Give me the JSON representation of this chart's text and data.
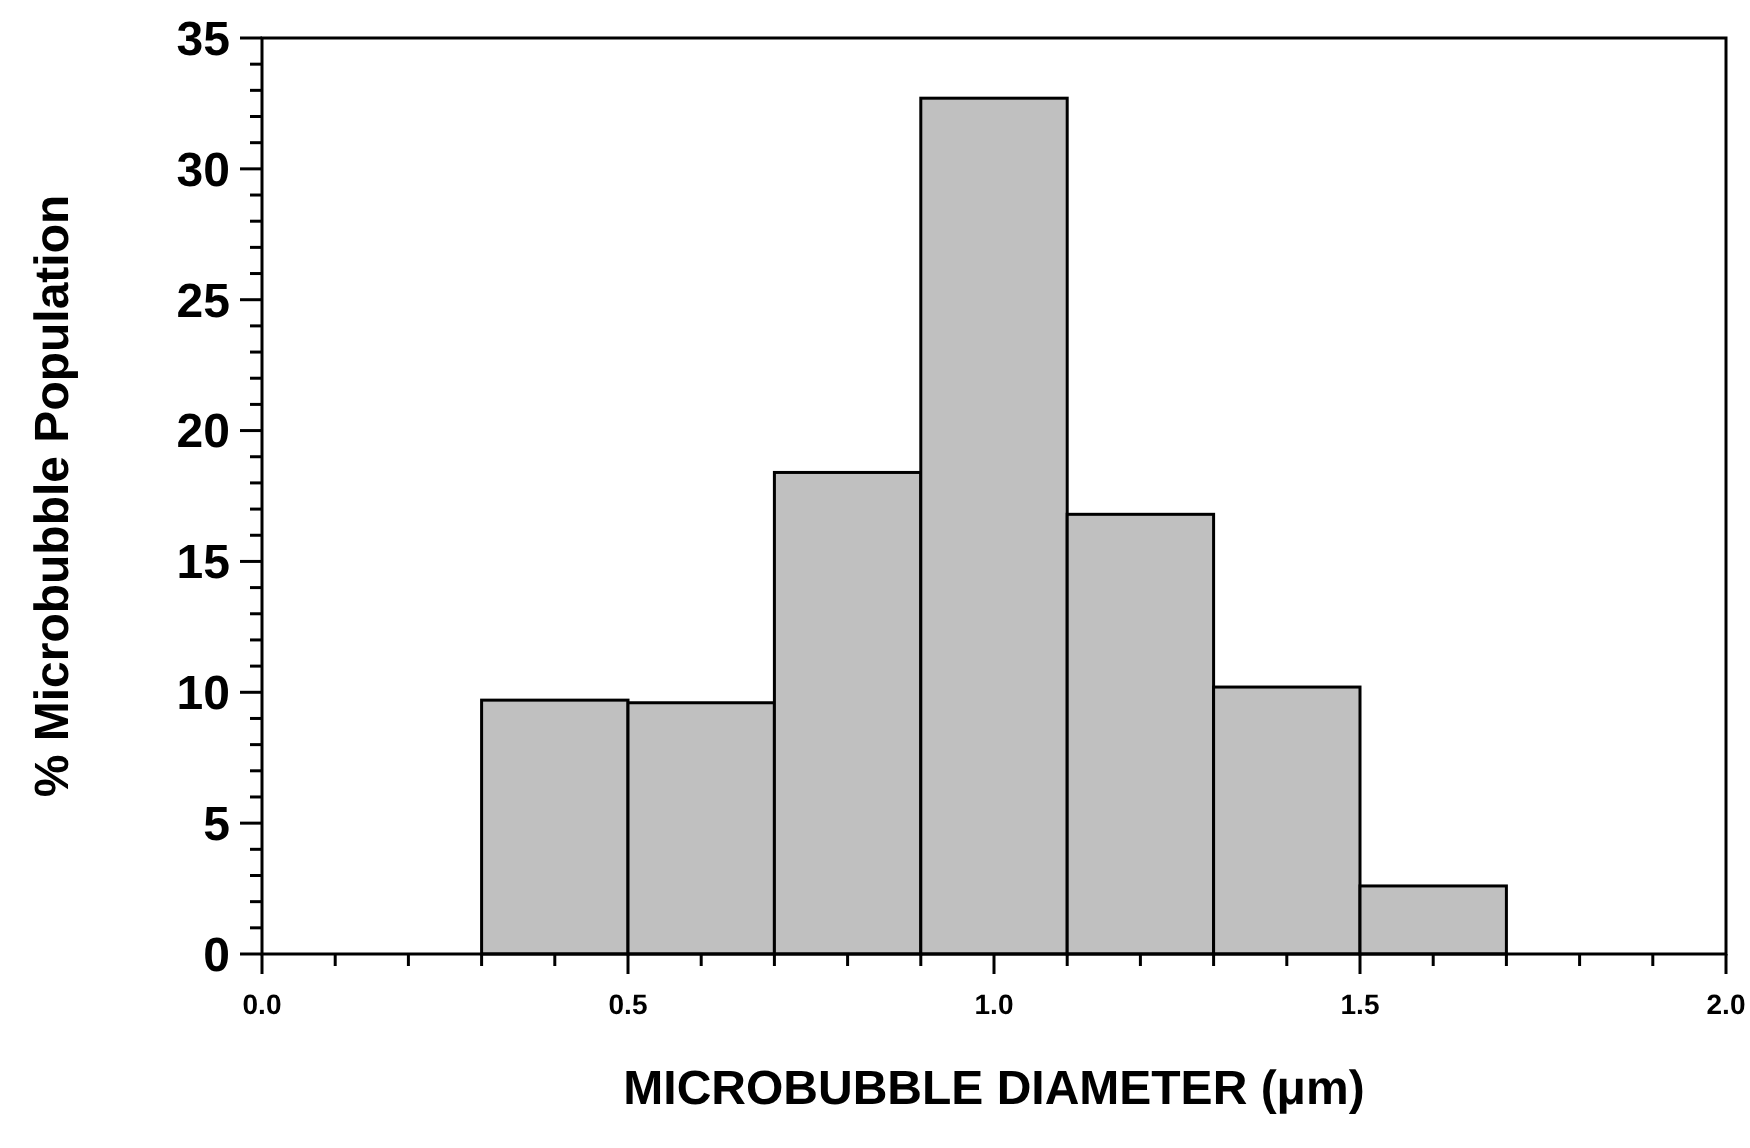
{
  "chart_data": {
    "type": "histogram",
    "xlabel": "MICROBUBBLE DIAMETER (μm)",
    "ylabel": "% Microbubble Population",
    "bins": [
      0.3,
      0.5,
      0.7,
      0.9,
      1.1,
      1.3,
      1.5,
      1.7
    ],
    "values": [
      9.7,
      9.6,
      18.4,
      32.7,
      16.8,
      10.2,
      2.6
    ],
    "color": "#c0c0c0",
    "xlim": [
      0,
      2
    ],
    "xticks": [
      {
        "value": 0,
        "label": "0.0"
      },
      {
        "value": 0.1,
        "label": null
      },
      {
        "value": 0.2,
        "label": null
      },
      {
        "value": 0.3,
        "label": null
      },
      {
        "value": 0.4,
        "label": null
      },
      {
        "value": 0.5,
        "label": "0.5"
      },
      {
        "value": 0.6,
        "label": null
      },
      {
        "value": 0.7,
        "label": null
      },
      {
        "value": 0.8,
        "label": null
      },
      {
        "value": 0.9,
        "label": null
      },
      {
        "value": 1,
        "label": "1.0"
      },
      {
        "value": 1.1,
        "label": null
      },
      {
        "value": 1.2,
        "label": null
      },
      {
        "value": 1.3,
        "label": null
      },
      {
        "value": 1.4,
        "label": null
      },
      {
        "value": 1.5,
        "label": "1.5"
      },
      {
        "value": 1.6,
        "label": null
      },
      {
        "value": 1.7,
        "label": null
      },
      {
        "value": 1.8,
        "label": null
      },
      {
        "value": 1.9,
        "label": null
      },
      {
        "value": 2,
        "label": "2.0"
      }
    ],
    "ylim": [
      0,
      35
    ],
    "yticks": [
      0,
      {
        "value": 1,
        "label": null
      },
      {
        "value": 2,
        "label": null
      },
      {
        "value": 3,
        "label": null
      },
      {
        "value": 4,
        "label": null
      },
      5,
      {
        "value": 6,
        "label": null
      },
      {
        "value": 7,
        "label": null
      },
      {
        "value": 8,
        "label": null
      },
      {
        "value": 9,
        "label": null
      },
      10,
      {
        "value": 11,
        "label": null
      },
      {
        "value": 12,
        "label": null
      },
      {
        "value": 13,
        "label": null
      },
      {
        "value": 14,
        "label": null
      },
      15,
      {
        "value": 16,
        "label": null
      },
      {
        "value": 17,
        "label": null
      },
      {
        "value": 18,
        "label": null
      },
      {
        "value": 19,
        "label": null
      },
      20,
      {
        "value": 21,
        "label": null
      },
      {
        "value": 22,
        "label": null
      },
      {
        "value": 23,
        "label": null
      },
      {
        "value": 24,
        "label": null
      },
      25,
      {
        "value": 26,
        "label": null
      },
      {
        "value": 27,
        "label": null
      },
      {
        "value": 28,
        "label": null
      },
      {
        "value": 29,
        "label": null
      },
      30,
      {
        "value": 31,
        "label": null
      },
      {
        "value": 32,
        "label": null
      },
      {
        "value": 33,
        "label": null
      },
      {
        "value": 34,
        "label": null
      },
      35
    ],
    "grid": false
  }
}
